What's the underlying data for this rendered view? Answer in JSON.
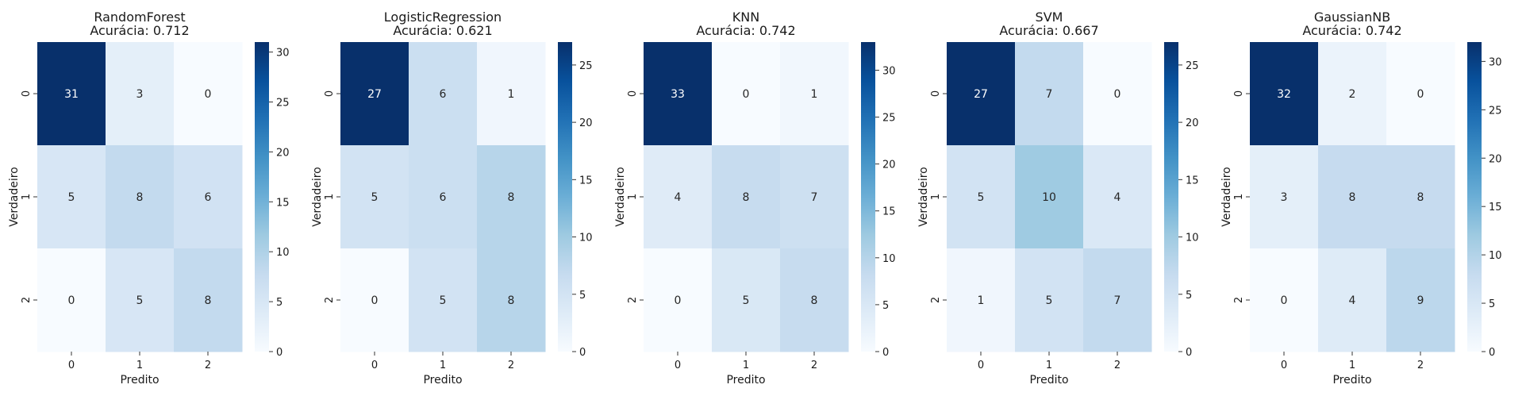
{
  "chart_data": [
    {
      "type": "heatmap",
      "model": "RandomForest",
      "subtitle": "Acurácia: 0.712",
      "xlabel": "Predito",
      "ylabel": "Verdadeiro",
      "x_categories": [
        "0",
        "1",
        "2"
      ],
      "y_categories": [
        "0",
        "1",
        "2"
      ],
      "matrix": [
        [
          31,
          3,
          0
        ],
        [
          5,
          8,
          6
        ],
        [
          0,
          5,
          8
        ]
      ],
      "colorbar": {
        "min": 0,
        "max": 31,
        "ticks": [
          0,
          5,
          10,
          15,
          20,
          25,
          30
        ]
      }
    },
    {
      "type": "heatmap",
      "model": "LogisticRegression",
      "subtitle": "Acurácia: 0.621",
      "xlabel": "Predito",
      "ylabel": "Verdadeiro",
      "x_categories": [
        "0",
        "1",
        "2"
      ],
      "y_categories": [
        "0",
        "1",
        "2"
      ],
      "matrix": [
        [
          27,
          6,
          1
        ],
        [
          5,
          6,
          8
        ],
        [
          0,
          5,
          8
        ]
      ],
      "colorbar": {
        "min": 0,
        "max": 27,
        "ticks": [
          0,
          5,
          10,
          15,
          20,
          25
        ]
      }
    },
    {
      "type": "heatmap",
      "model": "KNN",
      "subtitle": "Acurácia: 0.742",
      "xlabel": "Predito",
      "ylabel": "Verdadeiro",
      "x_categories": [
        "0",
        "1",
        "2"
      ],
      "y_categories": [
        "0",
        "1",
        "2"
      ],
      "matrix": [
        [
          33,
          0,
          1
        ],
        [
          4,
          8,
          7
        ],
        [
          0,
          5,
          8
        ]
      ],
      "colorbar": {
        "min": 0,
        "max": 33,
        "ticks": [
          0,
          5,
          10,
          15,
          20,
          25,
          30
        ]
      }
    },
    {
      "type": "heatmap",
      "model": "SVM",
      "subtitle": "Acurácia: 0.667",
      "xlabel": "Predito",
      "ylabel": "Verdadeiro",
      "x_categories": [
        "0",
        "1",
        "2"
      ],
      "y_categories": [
        "0",
        "1",
        "2"
      ],
      "matrix": [
        [
          27,
          7,
          0
        ],
        [
          5,
          10,
          4
        ],
        [
          1,
          5,
          7
        ]
      ],
      "colorbar": {
        "min": 0,
        "max": 27,
        "ticks": [
          0,
          5,
          10,
          15,
          20,
          25
        ]
      }
    },
    {
      "type": "heatmap",
      "model": "GaussianNB",
      "subtitle": "Acurácia: 0.742",
      "xlabel": "Predito",
      "ylabel": "Verdadeiro",
      "x_categories": [
        "0",
        "1",
        "2"
      ],
      "y_categories": [
        "0",
        "1",
        "2"
      ],
      "matrix": [
        [
          32,
          2,
          0
        ],
        [
          3,
          8,
          8
        ],
        [
          0,
          4,
          9
        ]
      ],
      "colorbar": {
        "min": 0,
        "max": 32,
        "ticks": [
          0,
          5,
          10,
          15,
          20,
          25,
          30
        ]
      }
    }
  ],
  "colormap": {
    "name": "Blues",
    "stops": [
      "#f7fbff",
      "#deebf7",
      "#c6dbef",
      "#9ecae1",
      "#6baed6",
      "#4292c6",
      "#2171b5",
      "#08519c",
      "#08306b"
    ]
  }
}
